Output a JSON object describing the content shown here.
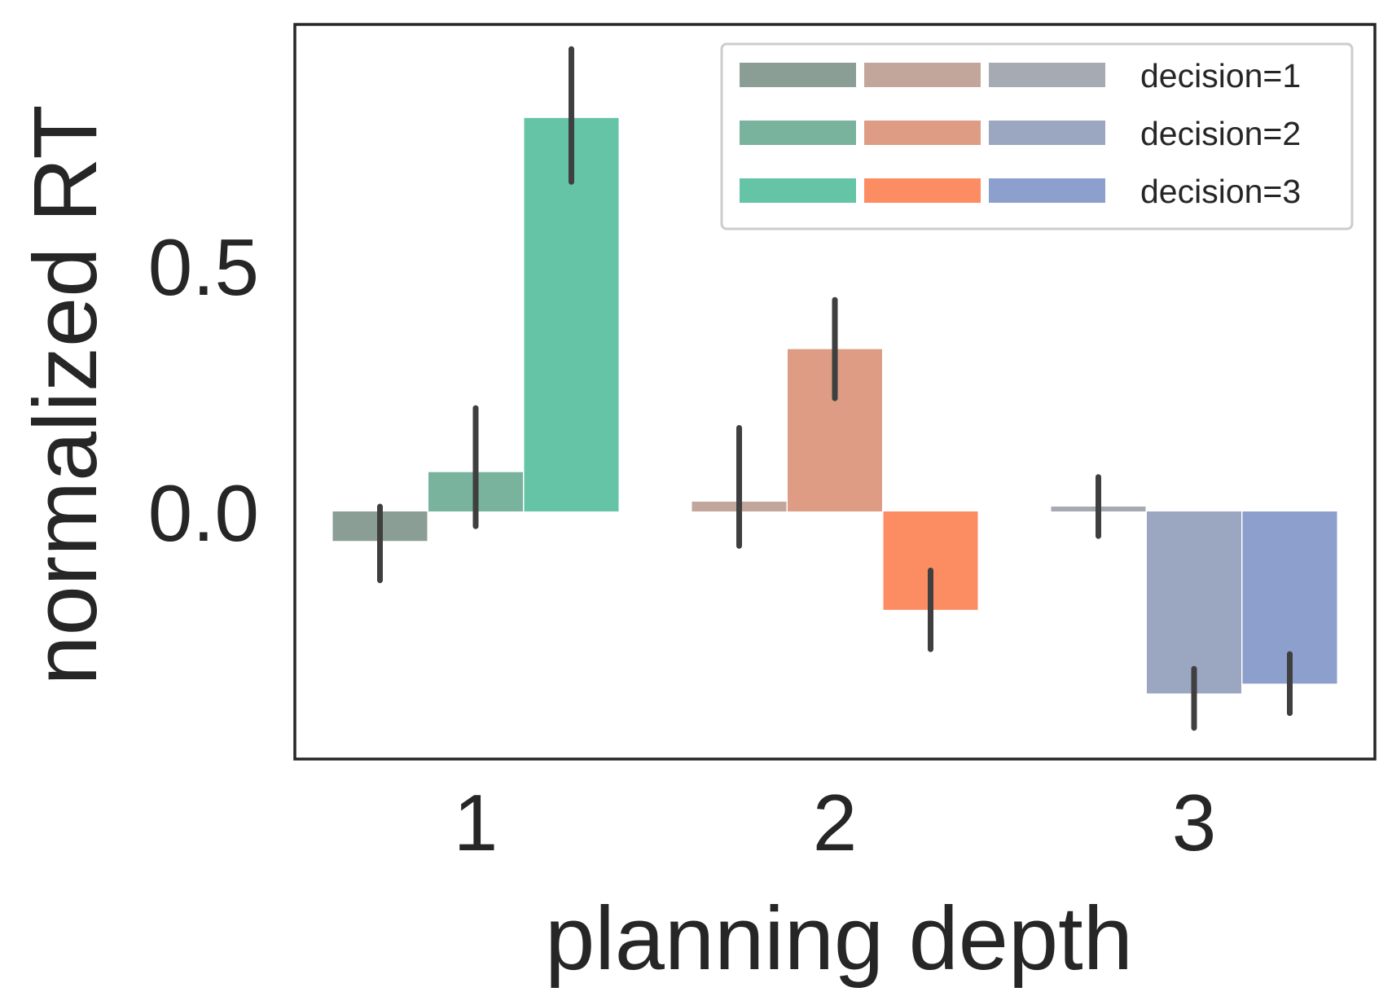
{
  "chart_data": {
    "type": "bar",
    "xlabel": "planning depth",
    "ylabel": "normalized RT",
    "categories": [
      "1",
      "2",
      "3"
    ],
    "yticks": [
      "0.0",
      "0.5"
    ],
    "ylim": [
      -0.5,
      1.0
    ],
    "series": [
      {
        "name": "decision=1",
        "values": [
          -0.06,
          0.02,
          0.01
        ],
        "err_low": [
          -0.14,
          -0.07,
          -0.05
        ],
        "err_high": [
          0.01,
          0.17,
          0.07
        ],
        "colors": [
          "#8a9e96",
          "#c2a69c",
          "#a6aab2"
        ]
      },
      {
        "name": "decision=2",
        "values": [
          0.08,
          0.33,
          -0.37
        ],
        "err_low": [
          -0.03,
          0.23,
          -0.44
        ],
        "err_high": [
          0.21,
          0.43,
          -0.32
        ],
        "colors": [
          "#79b39e",
          "#dd9c83",
          "#9ba6c0"
        ]
      },
      {
        "name": "decision=3",
        "values": [
          0.8,
          -0.2,
          -0.35
        ],
        "err_low": [
          0.67,
          -0.28,
          -0.41
        ],
        "err_high": [
          0.94,
          -0.12,
          -0.29
        ],
        "colors": [
          "#66c4a6",
          "#fc8d62",
          "#8d9fcc"
        ]
      }
    ],
    "legend_position": "top-right",
    "grid": false,
    "frame_color": "#262626",
    "errorbar_color": "#3f3f3f"
  }
}
